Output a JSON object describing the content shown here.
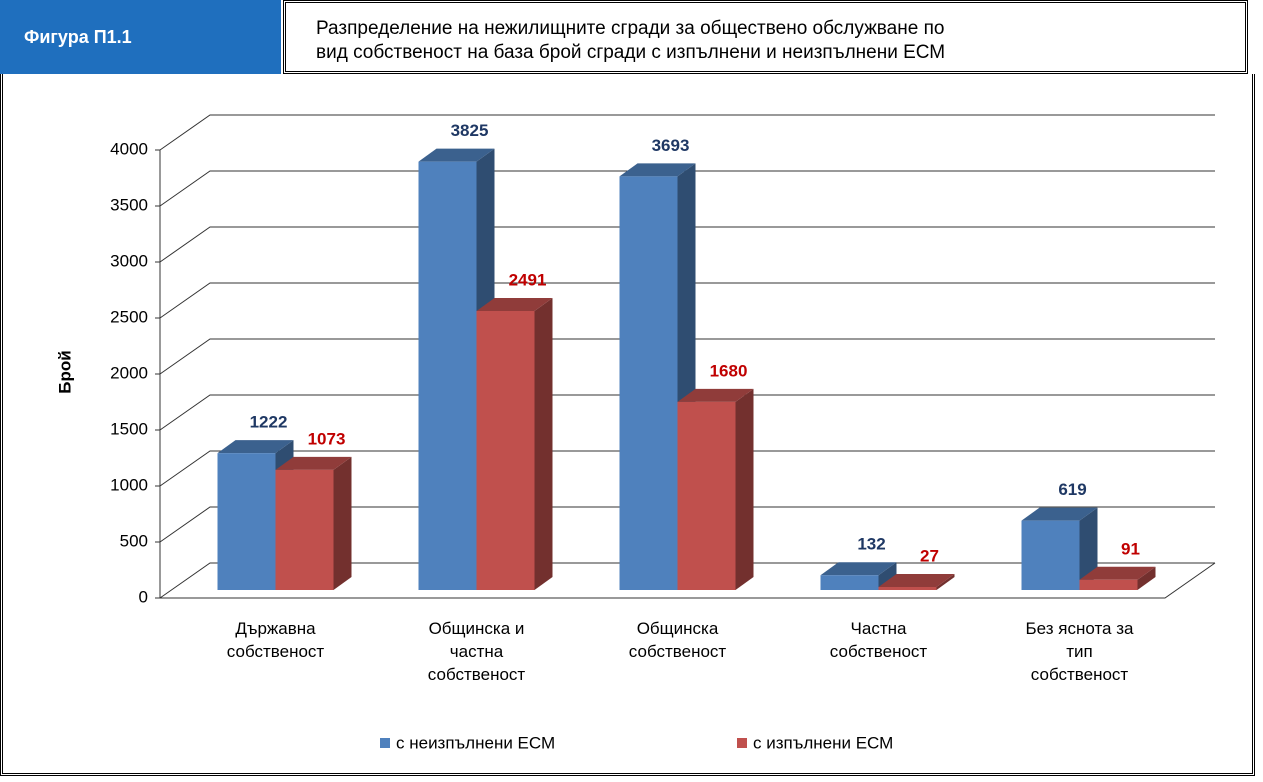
{
  "header": {
    "figure": "Фигура П1.1",
    "title": "Разпределение на нежилищните сгради за обществено обслужване по\nвид собственост на база брой сгради с изпълнени и неизпълнени ЕСМ"
  },
  "chart_data": {
    "type": "bar3d",
    "y_label": "Брой",
    "categories": [
      "Държавна\nсобственост",
      "Общинска и\nчастна\nсобственост",
      "Общинска\nсобственост",
      "Частна\nсобственост",
      "Без яснота  за\nтип\nсобственост"
    ],
    "series": [
      {
        "name": "с неизпълнени  ЕСМ",
        "color": "#4f81bd",
        "label_color": "#1f3864",
        "values": [
          1222,
          3825,
          3693,
          132,
          619
        ]
      },
      {
        "name": "с изпълнени  ЕСМ",
        "color": "#c0504d",
        "label_color": "#c00000",
        "values": [
          1073,
          2491,
          1680,
          27,
          91
        ]
      }
    ],
    "ylim": [
      0,
      4000
    ],
    "yticks": [
      0,
      500,
      1000,
      1500,
      2000,
      2500,
      3000,
      3500,
      4000
    ],
    "grid": true,
    "legend": "bottom"
  }
}
